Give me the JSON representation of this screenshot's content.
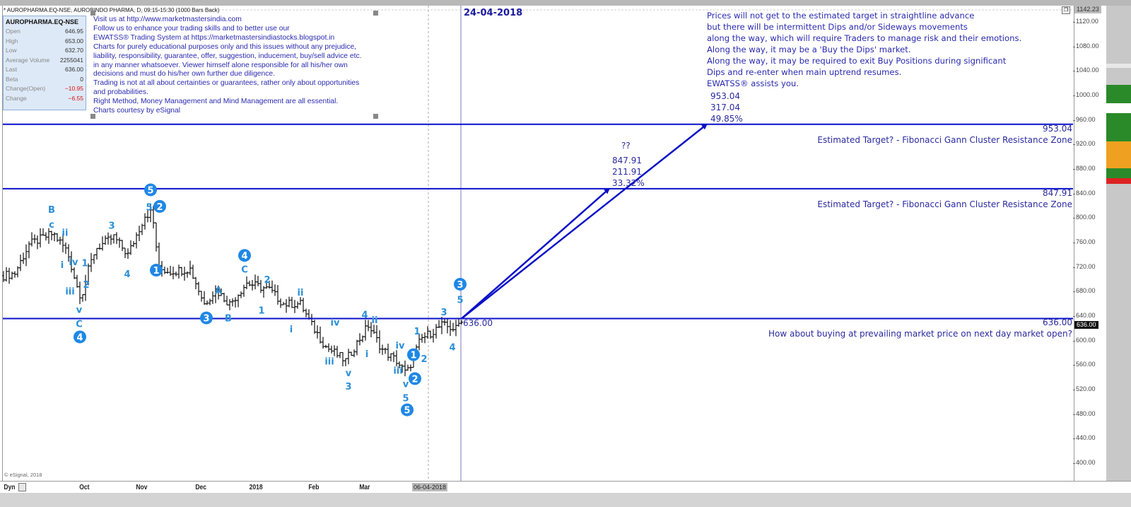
{
  "header": {
    "chart_title": "* AUROPHARMA.EQ-NSE, AUROBINDO PHARMA, D, 09:15-15:30 (1000 Bars Back)",
    "date_marker": "24-04-2018"
  },
  "info_box": {
    "symbol": "AUROPHARMA.EQ-NSE",
    "rows": [
      {
        "label": "Open",
        "value": "646.95"
      },
      {
        "label": "High",
        "value": "653.00"
      },
      {
        "label": "Low",
        "value": "632.70"
      },
      {
        "label": "Average Volume",
        "value": "2255041"
      },
      {
        "label": "Last",
        "value": "636.00"
      },
      {
        "label": "Beta",
        "value": "0"
      },
      {
        "label": "Change(Open)",
        "value": "−10.95"
      },
      {
        "label": "Change",
        "value": "−6.55"
      }
    ]
  },
  "disclaimer": [
    "Visit us at http://www.marketmastersindia.com",
    "Follow us to enhance your trading skills and to better use our",
    "EWATSS® Trading System at https://marketmastersindiastocks.blogspot.in",
    "Charts for purely educational purposes only and this issues without any prejudice,",
    "liability, responsibility, guarantee, offer, suggestion, inducement, buy/sell advice etc.",
    "in any manner whatsoever. Viewer himself alone responsible for all his/her own",
    "decisions and must do his/her own further due diligence.",
    "Trading is not at all about certainties or guarantees, rather only about opportunities",
    "and probabilities.",
    "Right Method, Money Management and Mind Management are all essential.",
    "Charts courtesy by eSignal"
  ],
  "note": [
    "Prices will not get to the estimated target in straightline advance",
    "but there will be intermittent Dips and/or Sideways movements",
    "along the way, which will require Traders to manage risk and their emotions.",
    "Along the way, it may be a 'Buy the Dips' market.",
    "Along the way, it may be required to exit Buy Positions during significant",
    "Dips and re-enter when main uptrend resumes.",
    "EWATSS® assists you."
  ],
  "target1_stack": [
    "953.04",
    "317.04",
    "49.85%"
  ],
  "target2_stack": [
    "??",
    "847.91",
    "211.91",
    "33.32%"
  ],
  "levels": [
    {
      "price": 953.04,
      "label": "953.04",
      "caption": "Estimated Target? - Fibonacci Gann Cluster Resistance Zone"
    },
    {
      "price": 847.91,
      "label": "847.91",
      "caption": "Estimated Target? - Fibonacci Gann Cluster Resistance Zone"
    },
    {
      "price": 636.0,
      "label": "636.00",
      "caption": "How about buying at prevailing market price on next day market open?"
    }
  ],
  "current_price_label": "636.00",
  "axis_tags": {
    "high": "1142.23",
    "last": "636.00"
  },
  "x_axis": {
    "dyn_label": "Dyn",
    "months": [
      {
        "label": "Oct",
        "bar": 28
      },
      {
        "label": "Nov",
        "bar": 48
      },
      {
        "label": "Dec",
        "bar": 69
      },
      {
        "label": "2018",
        "bar": 88
      },
      {
        "label": "Feb",
        "bar": 109
      },
      {
        "label": "Mar",
        "bar": 127
      }
    ],
    "cursor_date": "06-04-2018"
  },
  "copyright": "© eSignal, 2018",
  "colors": {
    "line": "#0a10c8",
    "wave": "#2b8fd8",
    "circle": "#1e88e5",
    "text": "#2a2ab0"
  },
  "chart_data": {
    "type": "bar",
    "title": "AUROPHARMA.EQ-NSE Daily",
    "ylim": [
      400,
      1120
    ],
    "y_ticks": [
      "1120.00",
      "1080.00",
      "1040.00",
      "1000.00",
      "960.00",
      "920.00",
      "880.00",
      "840.00",
      "800.00",
      "760.00",
      "720.00",
      "680.00",
      "640.00",
      "600.00",
      "560.00",
      "520.00",
      "480.00",
      "440.00",
      "400.00"
    ],
    "price_path": [
      [
        0,
        706
      ],
      [
        4,
        710
      ],
      [
        9,
        757
      ],
      [
        17.5,
        775
      ],
      [
        22.5,
        746
      ],
      [
        26,
        688
      ],
      [
        27.5,
        671
      ],
      [
        30,
        715
      ],
      [
        32.5,
        750
      ],
      [
        39,
        769
      ],
      [
        44,
        740
      ],
      [
        50,
        804
      ],
      [
        52.5,
        810
      ],
      [
        55,
        717
      ],
      [
        59,
        713
      ],
      [
        66,
        717
      ],
      [
        71,
        660
      ],
      [
        75,
        683
      ],
      [
        80,
        660
      ],
      [
        86,
        694
      ],
      [
        94,
        683
      ],
      [
        99,
        660
      ],
      [
        105,
        660
      ],
      [
        109,
        625
      ],
      [
        114,
        590
      ],
      [
        121,
        567
      ],
      [
        129,
        625
      ],
      [
        134,
        585
      ],
      [
        139,
        567
      ],
      [
        142.5,
        545
      ],
      [
        147.5,
        602
      ],
      [
        155,
        625
      ],
      [
        160,
        619
      ],
      [
        162,
        636
      ]
    ],
    "last_bar": 162,
    "cursor_bar": 150.25,
    "date_marker_bar": 161.75,
    "arrows": [
      {
        "from": [
          162,
          636
        ],
        "to": [
          248.75,
          953
        ]
      },
      {
        "from": [
          162,
          636
        ],
        "to": [
          214.25,
          848
        ]
      }
    ],
    "wave_labels": [
      {
        "t": "B",
        "bar": 17,
        "p": 814
      },
      {
        "t": "c",
        "bar": 17,
        "p": 790
      },
      {
        "t": "ii",
        "bar": 21.75,
        "p": 777
      },
      {
        "t": "i",
        "bar": 20.75,
        "p": 724
      },
      {
        "t": "iv",
        "bar": 24.75,
        "p": 729
      },
      {
        "t": "1",
        "bar": 28.75,
        "p": 727
      },
      {
        "t": "iii",
        "bar": 23.5,
        "p": 681
      },
      {
        "t": "2",
        "bar": 29.25,
        "p": 692
      },
      {
        "t": "v",
        "bar": 26.75,
        "p": 651
      },
      {
        "t": "C",
        "bar": 26.75,
        "p": 628
      },
      {
        "t": "4",
        "bar": 27,
        "p": 606,
        "circle": true
      },
      {
        "t": "3",
        "bar": 38.25,
        "p": 788
      },
      {
        "t": "4",
        "bar": 43.75,
        "p": 709
      },
      {
        "t": "5",
        "bar": 51.5,
        "p": 818
      },
      {
        "t": "5",
        "bar": 52,
        "p": 846,
        "circle": true
      },
      {
        "t": "2",
        "bar": 55.25,
        "p": 819,
        "circle": true
      },
      {
        "t": "1",
        "bar": 54,
        "p": 715,
        "circle": true
      },
      {
        "t": "A",
        "bar": 76,
        "p": 682
      },
      {
        "t": "3",
        "bar": 71.75,
        "p": 637,
        "circle": true
      },
      {
        "t": "B",
        "bar": 79.5,
        "p": 637
      },
      {
        "t": "4",
        "bar": 85.25,
        "p": 739,
        "circle": true
      },
      {
        "t": "C",
        "bar": 85.25,
        "p": 717
      },
      {
        "t": "2",
        "bar": 93.25,
        "p": 700
      },
      {
        "t": "1",
        "bar": 91.25,
        "p": 650
      },
      {
        "t": "ii",
        "bar": 105,
        "p": 679
      },
      {
        "t": "i",
        "bar": 101.75,
        "p": 619
      },
      {
        "t": "iv",
        "bar": 117.25,
        "p": 630
      },
      {
        "t": "4",
        "bar": 127.75,
        "p": 643
      },
      {
        "t": "ii",
        "bar": 129.5,
        "p": 634
      },
      {
        "t": "iii",
        "bar": 115.25,
        "p": 567
      },
      {
        "t": "i",
        "bar": 128.5,
        "p": 579
      },
      {
        "t": "v",
        "bar": 122,
        "p": 548
      },
      {
        "t": "3",
        "bar": 122,
        "p": 526
      },
      {
        "t": "iv",
        "bar": 140.25,
        "p": 593
      },
      {
        "t": "1",
        "bar": 144,
        "p": 577,
        "circle": true
      },
      {
        "t": "2",
        "bar": 147.75,
        "p": 571
      },
      {
        "t": "iii",
        "bar": 139.5,
        "p": 552
      },
      {
        "t": "2",
        "bar": 145.5,
        "p": 538,
        "circle": true
      },
      {
        "t": "v",
        "bar": 142.25,
        "p": 530
      },
      {
        "t": "5",
        "bar": 142.25,
        "p": 507
      },
      {
        "t": "5",
        "bar": 142.75,
        "p": 487,
        "circle": true
      },
      {
        "t": "1",
        "bar": 146.25,
        "p": 616
      },
      {
        "t": "3",
        "bar": 155.75,
        "p": 647
      },
      {
        "t": "5",
        "bar": 161.5,
        "p": 667
      },
      {
        "t": "3",
        "bar": 161.5,
        "p": 692,
        "circle": true
      },
      {
        "t": "4",
        "bar": 158.75,
        "p": 590
      }
    ]
  }
}
